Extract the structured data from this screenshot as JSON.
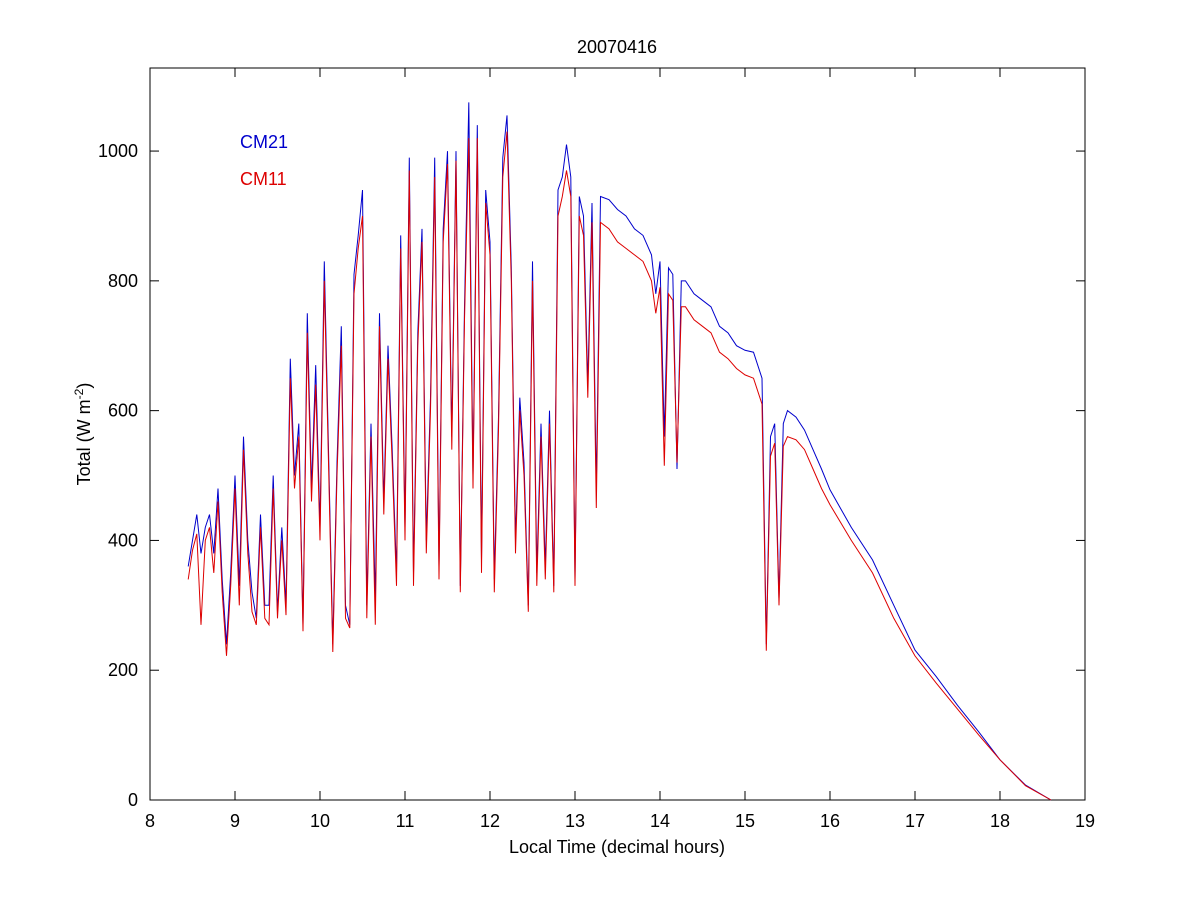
{
  "chart_data": {
    "type": "line",
    "title": "20070416",
    "xlabel": "Local Time (decimal hours)",
    "ylabel_main": "Total (W m",
    "ylabel_sup": "-2",
    "ylabel_close": ")",
    "xlim": [
      8,
      19
    ],
    "ylim": [
      0,
      1128
    ],
    "xticks": [
      8,
      9,
      10,
      11,
      12,
      13,
      14,
      15,
      16,
      17,
      18,
      19
    ],
    "yticks": [
      0,
      200,
      400,
      600,
      800,
      1000
    ],
    "grid": false,
    "legend_placement": "top-left",
    "x": [
      8.45,
      8.5,
      8.55,
      8.6,
      8.65,
      8.7,
      8.75,
      8.8,
      8.85,
      8.9,
      8.95,
      9.0,
      9.05,
      9.1,
      9.15,
      9.2,
      9.25,
      9.3,
      9.35,
      9.4,
      9.45,
      9.5,
      9.55,
      9.6,
      9.65,
      9.7,
      9.75,
      9.8,
      9.85,
      9.9,
      9.95,
      10.0,
      10.05,
      10.1,
      10.15,
      10.2,
      10.25,
      10.3,
      10.35,
      10.4,
      10.45,
      10.5,
      10.55,
      10.6,
      10.65,
      10.7,
      10.75,
      10.8,
      10.85,
      10.9,
      10.95,
      11.0,
      11.05,
      11.1,
      11.15,
      11.2,
      11.25,
      11.3,
      11.35,
      11.4,
      11.45,
      11.5,
      11.55,
      11.6,
      11.65,
      11.7,
      11.75,
      11.8,
      11.85,
      11.9,
      11.95,
      12.0,
      12.05,
      12.1,
      12.15,
      12.2,
      12.25,
      12.3,
      12.35,
      12.4,
      12.45,
      12.5,
      12.55,
      12.6,
      12.65,
      12.7,
      12.75,
      12.8,
      12.85,
      12.9,
      12.95,
      13.0,
      13.05,
      13.1,
      13.15,
      13.2,
      13.25,
      13.3,
      13.4,
      13.5,
      13.6,
      13.7,
      13.8,
      13.9,
      13.95,
      14.0,
      14.05,
      14.1,
      14.15,
      14.2,
      14.25,
      14.3,
      14.4,
      14.5,
      14.6,
      14.7,
      14.8,
      14.9,
      15.0,
      15.1,
      15.2,
      15.25,
      15.3,
      15.35,
      15.4,
      15.45,
      15.5,
      15.6,
      15.7,
      15.8,
      15.9,
      16.0,
      16.25,
      16.5,
      16.75,
      17.0,
      17.25,
      17.5,
      17.75,
      18.0,
      18.3,
      18.6
    ],
    "series": [
      {
        "name": "CM21",
        "color": "#0000cc",
        "values": [
          360,
          400,
          440,
          380,
          420,
          440,
          380,
          480,
          340,
          240,
          350,
          500,
          330,
          560,
          400,
          320,
          280,
          440,
          300,
          300,
          500,
          290,
          420,
          300,
          680,
          500,
          580,
          270,
          750,
          480,
          670,
          420,
          830,
          540,
          240,
          520,
          730,
          300,
          270,
          810,
          870,
          940,
          300,
          580,
          310,
          750,
          460,
          700,
          540,
          350,
          870,
          420,
          990,
          350,
          720,
          880,
          400,
          620,
          990,
          360,
          880,
          1000,
          560,
          1000,
          330,
          760,
          1075,
          500,
          1040,
          370,
          940,
          860,
          340,
          590,
          990,
          1055,
          820,
          400,
          620,
          520,
          300,
          830,
          350,
          580,
          360,
          600,
          330,
          940,
          960,
          1010,
          960,
          340,
          930,
          900,
          640,
          920,
          480,
          930,
          925,
          910,
          900,
          880,
          870,
          840,
          780,
          830,
          560,
          820,
          810,
          510,
          800,
          800,
          780,
          770,
          760,
          730,
          720,
          700,
          693,
          690,
          650,
          240,
          560,
          580,
          310,
          580,
          600,
          590,
          570,
          540,
          510,
          478,
          420,
          370,
          300,
          231,
          190,
          146,
          105,
          62,
          23,
          0
        ]
      },
      {
        "name": "CM11",
        "color": "#dd0000",
        "values": [
          340,
          385,
          410,
          270,
          400,
          420,
          350,
          460,
          320,
          222,
          330,
          480,
          300,
          540,
          380,
          290,
          270,
          420,
          280,
          270,
          480,
          280,
          400,
          285,
          650,
          480,
          560,
          260,
          720,
          460,
          640,
          400,
          800,
          520,
          228,
          500,
          700,
          280,
          265,
          780,
          850,
          900,
          280,
          560,
          270,
          730,
          440,
          680,
          520,
          330,
          850,
          400,
          970,
          330,
          700,
          860,
          380,
          600,
          960,
          340,
          860,
          980,
          540,
          985,
          320,
          740,
          1020,
          480,
          1020,
          350,
          920,
          840,
          320,
          570,
          960,
          1030,
          800,
          380,
          600,
          500,
          290,
          800,
          330,
          560,
          340,
          580,
          320,
          900,
          930,
          970,
          930,
          330,
          900,
          870,
          620,
          890,
          450,
          890,
          880,
          860,
          850,
          840,
          830,
          800,
          750,
          790,
          515,
          780,
          770,
          520,
          760,
          760,
          740,
          730,
          720,
          690,
          680,
          665,
          655,
          650,
          610,
          230,
          530,
          550,
          300,
          545,
          560,
          555,
          540,
          510,
          480,
          455,
          400,
          350,
          280,
          222,
          180,
          140,
          100,
          62,
          22,
          0
        ]
      }
    ]
  }
}
